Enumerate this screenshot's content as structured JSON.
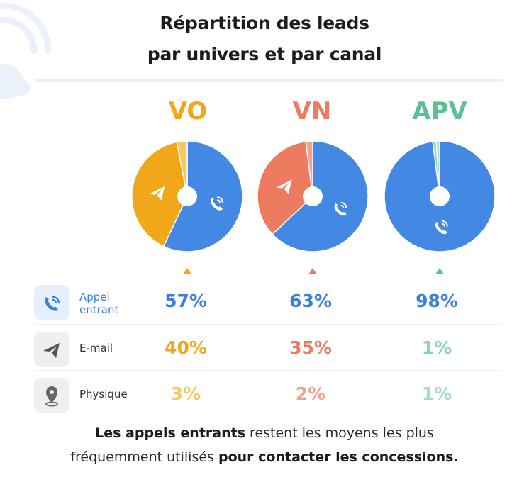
{
  "title": {
    "line1": "Répartition des leads",
    "line2": "par univers et par canal"
  },
  "colors": {
    "appel": "#4388e3",
    "vo": "#f0a81a",
    "vn": "#ed7b5f",
    "apv": "#5cbf95",
    "email_vo": "#f0a81a",
    "email_vn": "#ed7b5f",
    "email_apv": "#8fd3b7",
    "phys_vo": "#f5c864",
    "phys_vn": "#f4a190",
    "phys_apv": "#a7dcc5"
  },
  "chart_data": {
    "type": "pie",
    "universes": [
      "VO",
      "VN",
      "APV"
    ],
    "channels": [
      "Appel entrant",
      "E-mail",
      "Physique"
    ],
    "values": {
      "VO": [
        57,
        40,
        3
      ],
      "VN": [
        63,
        35,
        2
      ],
      "APV": [
        98,
        1,
        1
      ]
    },
    "value_labels": {
      "VO": [
        "57%",
        "40%",
        "3%"
      ],
      "VN": [
        "63%",
        "35%",
        "2%"
      ],
      "APV": [
        "98%",
        "1%",
        "1%"
      ]
    }
  },
  "rows": [
    {
      "label_line1": "Appel",
      "label_line2": "entrant",
      "icon": "phone-icon"
    },
    {
      "label_line1": "E-mail",
      "label_line2": "",
      "icon": "paper-plane-icon"
    },
    {
      "label_line1": "Physique",
      "label_line2": "",
      "icon": "location-pin-icon"
    }
  ],
  "footer": {
    "bold1": "Les appels entrants",
    "text1": " restent les moyens les plus",
    "text2": "fréquemment utilisés ",
    "bold2": "pour contacter les concessions."
  }
}
